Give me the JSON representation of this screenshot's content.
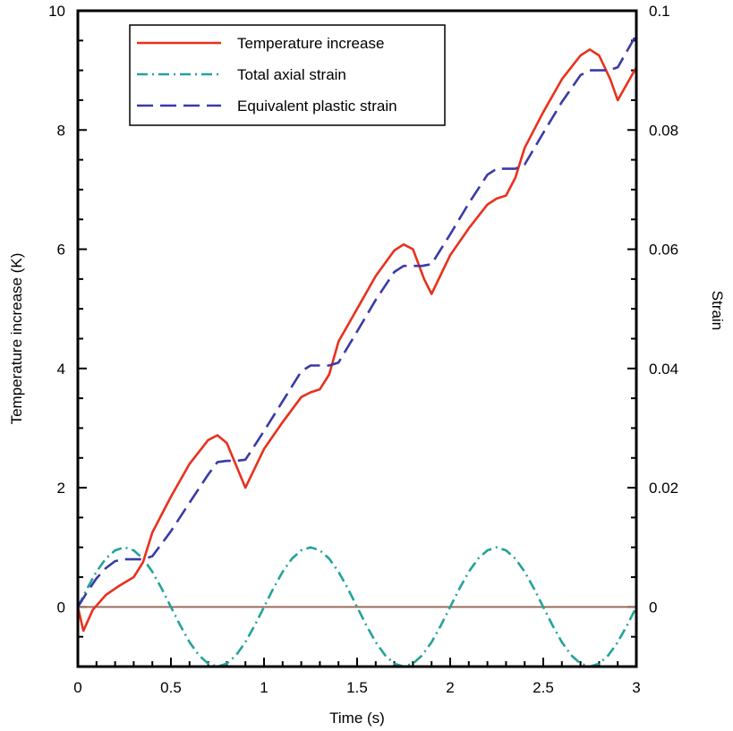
{
  "chart_data": {
    "type": "line",
    "xlabel": "Time (s)",
    "ylabel": "Temperature increase (K)",
    "y2label": "Strain",
    "xlim": [
      0,
      3
    ],
    "ylim": [
      -1,
      10
    ],
    "y2lim": [
      -0.01,
      0.1
    ],
    "x_ticks": [
      "0",
      "0.5",
      "1",
      "1.5",
      "2",
      "2.5",
      "3"
    ],
    "y_ticks": [
      "0",
      "2",
      "4",
      "6",
      "8",
      "10"
    ],
    "y2_ticks": [
      "0",
      "0.02",
      "0.04",
      "0.06",
      "0.08",
      "0.1"
    ],
    "grid": false,
    "legend_position": "top-left",
    "zero_line_color": "#9b6b5c",
    "series": [
      {
        "name": "Temperature increase",
        "axis": "left",
        "color": "#e8311d",
        "dash": "solid",
        "x": [
          0,
          0.03,
          0.08,
          0.15,
          0.22,
          0.3,
          0.35,
          0.4,
          0.5,
          0.6,
          0.7,
          0.75,
          0.8,
          0.86,
          0.9,
          1.0,
          1.1,
          1.2,
          1.25,
          1.3,
          1.35,
          1.4,
          1.5,
          1.6,
          1.7,
          1.75,
          1.8,
          1.86,
          1.9,
          2.0,
          2.1,
          2.2,
          2.25,
          2.3,
          2.35,
          2.4,
          2.5,
          2.6,
          2.7,
          2.75,
          2.8,
          2.86,
          2.9,
          3.0
        ],
        "y": [
          0.0,
          -0.4,
          -0.05,
          0.2,
          0.35,
          0.5,
          0.75,
          1.25,
          1.85,
          2.4,
          2.8,
          2.88,
          2.75,
          2.3,
          2.0,
          2.65,
          3.1,
          3.52,
          3.6,
          3.65,
          3.9,
          4.45,
          5.0,
          5.55,
          5.98,
          6.08,
          6.0,
          5.5,
          5.25,
          5.9,
          6.35,
          6.75,
          6.85,
          6.9,
          7.2,
          7.7,
          8.3,
          8.85,
          9.25,
          9.35,
          9.25,
          8.85,
          8.5,
          9.05
        ]
      },
      {
        "name": "Total axial strain",
        "axis": "right",
        "color": "#22a39a",
        "dash": "dashdot",
        "x": [
          0,
          0.05,
          0.1,
          0.15,
          0.2,
          0.25,
          0.3,
          0.35,
          0.4,
          0.45,
          0.5,
          0.55,
          0.6,
          0.65,
          0.7,
          0.75,
          0.8,
          0.85,
          0.9,
          0.95,
          1.0,
          1.05,
          1.1,
          1.15,
          1.2,
          1.25,
          1.3,
          1.35,
          1.4,
          1.45,
          1.5,
          1.55,
          1.6,
          1.65,
          1.7,
          1.75,
          1.8,
          1.85,
          1.9,
          1.95,
          2.0,
          2.05,
          2.1,
          2.15,
          2.2,
          2.25,
          2.3,
          2.35,
          2.4,
          2.45,
          2.5,
          2.55,
          2.6,
          2.65,
          2.7,
          2.75,
          2.8,
          2.85,
          2.9,
          2.95,
          3.0
        ],
        "y": [
          0.0,
          0.0031,
          0.0059,
          0.0081,
          0.0095,
          0.01,
          0.0095,
          0.0081,
          0.0059,
          0.0031,
          0.0,
          -0.0031,
          -0.0059,
          -0.0081,
          -0.0095,
          -0.01,
          -0.0095,
          -0.0081,
          -0.0059,
          -0.0031,
          0.0,
          0.0031,
          0.0059,
          0.0081,
          0.0095,
          0.01,
          0.0095,
          0.0081,
          0.0059,
          0.0031,
          0.0,
          -0.0031,
          -0.0059,
          -0.0081,
          -0.0095,
          -0.01,
          -0.0095,
          -0.0081,
          -0.0059,
          -0.0031,
          0.0,
          0.0031,
          0.0059,
          0.0081,
          0.0095,
          0.01,
          0.0095,
          0.0081,
          0.0059,
          0.0031,
          0.0,
          -0.0031,
          -0.0059,
          -0.0081,
          -0.0095,
          -0.01,
          -0.0095,
          -0.0081,
          -0.0059,
          -0.0031,
          0.0
        ]
      },
      {
        "name": "Equivalent plastic strain",
        "axis": "right",
        "color": "#3a3aa8",
        "dash": "dashed",
        "x": [
          0,
          0.05,
          0.1,
          0.15,
          0.2,
          0.25,
          0.3,
          0.35,
          0.4,
          0.5,
          0.6,
          0.7,
          0.75,
          0.8,
          0.85,
          0.9,
          1.0,
          1.1,
          1.2,
          1.25,
          1.3,
          1.35,
          1.4,
          1.5,
          1.6,
          1.7,
          1.75,
          1.8,
          1.85,
          1.9,
          2.0,
          2.1,
          2.2,
          2.25,
          2.3,
          2.35,
          2.4,
          2.5,
          2.6,
          2.7,
          2.75,
          2.8,
          2.85,
          2.9,
          3.0
        ],
        "y": [
          0.0,
          0.0025,
          0.0048,
          0.0065,
          0.0077,
          0.008,
          0.008,
          0.008,
          0.0085,
          0.0127,
          0.0175,
          0.0222,
          0.0243,
          0.0245,
          0.0245,
          0.0247,
          0.0295,
          0.0345,
          0.0395,
          0.0405,
          0.0405,
          0.0405,
          0.041,
          0.0462,
          0.0515,
          0.0562,
          0.0572,
          0.0572,
          0.0572,
          0.0575,
          0.0625,
          0.0677,
          0.0725,
          0.0735,
          0.0735,
          0.0735,
          0.0742,
          0.0795,
          0.0847,
          0.0892,
          0.09,
          0.09,
          0.09,
          0.0905,
          0.096
        ]
      }
    ]
  }
}
